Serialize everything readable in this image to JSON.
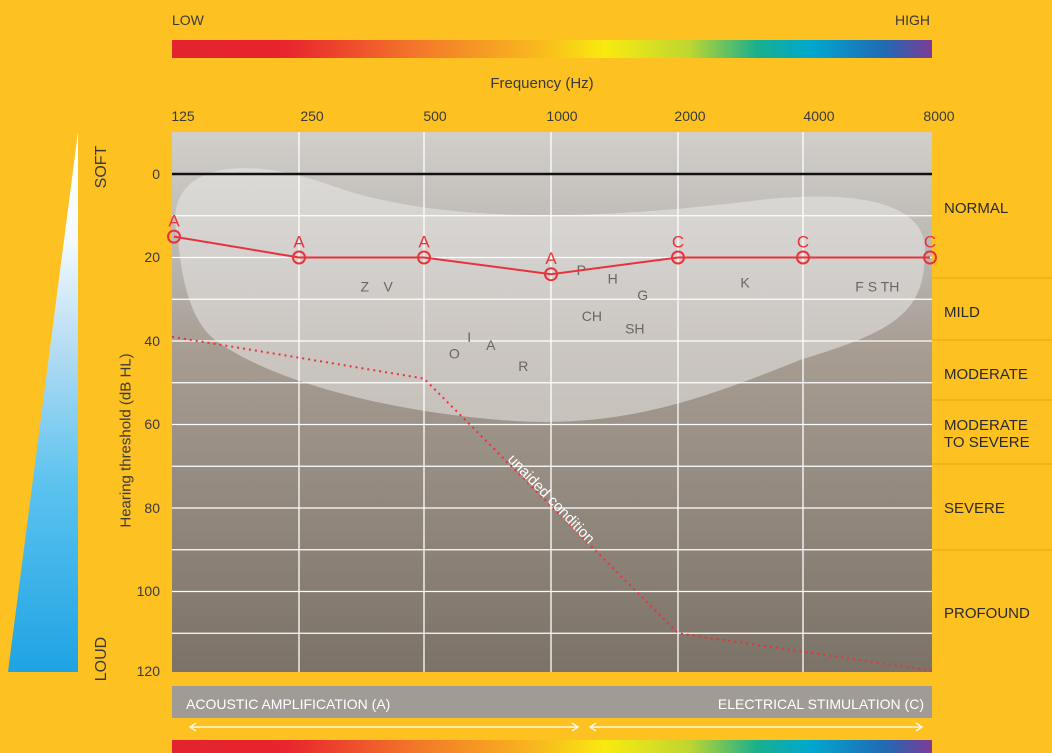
{
  "scale": {
    "low_label": "LOW",
    "high_label": "HIGH"
  },
  "chart_data": {
    "type": "line",
    "xlabel": "Frequency (Hz)",
    "ylabel": "Hearing threshold (dB HL)",
    "x_categories": [
      "125",
      "250",
      "500",
      "1000",
      "2000",
      "4000",
      "8000"
    ],
    "y_ticks": [
      "0",
      "20",
      "40",
      "60",
      "80",
      "100",
      "120"
    ],
    "ylim": [
      0,
      120
    ],
    "y_reversed": true,
    "x_scale": "log",
    "grid": true,
    "series": [
      {
        "name": "",
        "style": "solid",
        "color": "#E8323C",
        "x": [
          125,
          250,
          500,
          1000,
          2000,
          4000,
          8000
        ],
        "y": [
          15,
          20,
          20,
          24,
          20,
          20,
          20
        ],
        "marker_labels": [
          "A",
          "A",
          "A",
          "A",
          "C",
          "C",
          "C"
        ]
      },
      {
        "name": "unaided condition",
        "style": "dotted",
        "color": "#E8323C",
        "x": [
          125,
          250,
          500,
          2000,
          8000
        ],
        "y": [
          39,
          44,
          49,
          110,
          119
        ]
      }
    ],
    "speech_sounds": [
      {
        "label": "Z",
        "x": 360,
        "y": 27
      },
      {
        "label": "V",
        "x": 410,
        "y": 27
      },
      {
        "label": "I",
        "x": 640,
        "y": 39
      },
      {
        "label": "O",
        "x": 590,
        "y": 43
      },
      {
        "label": "A",
        "x": 720,
        "y": 41
      },
      {
        "label": "R",
        "x": 860,
        "y": 46
      },
      {
        "label": "P",
        "x": 1180,
        "y": 23
      },
      {
        "label": "H",
        "x": 1400,
        "y": 25
      },
      {
        "label": "G",
        "x": 1650,
        "y": 29
      },
      {
        "label": "CH",
        "x": 1250,
        "y": 34
      },
      {
        "label": "SH",
        "x": 1580,
        "y": 37
      },
      {
        "label": "K",
        "x": 2900,
        "y": 26
      },
      {
        "label": "F S TH",
        "x": 6000,
        "y": 27
      }
    ],
    "hearing_levels": [
      "NORMAL",
      "MILD",
      "MODERATE",
      "MODERATE TO SEVERE",
      "SEVERE",
      "PROFOUND"
    ]
  },
  "loudness": {
    "soft_label": "SOFT",
    "loud_label": "LOUD"
  },
  "bottom_bar": {
    "left_label": "ACOUSTIC AMPLIFICATION (A)",
    "right_label": "ELECTRICAL STIMULATION (C)"
  },
  "colors": {
    "background": "#FDC122",
    "audiogram_line": "#E8323C",
    "plot_bg_top": "#CFCCC8",
    "plot_bg_bottom": "#7F766C"
  }
}
